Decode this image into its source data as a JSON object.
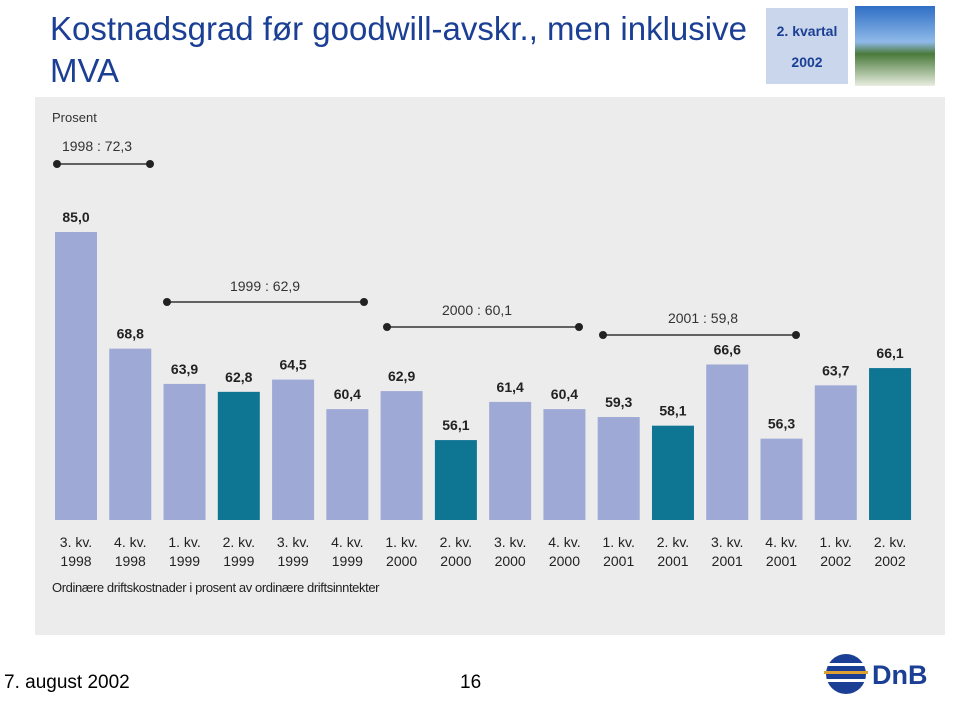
{
  "title": "Kostnadsgrad før goodwill-avskr., men inklusive MVA",
  "quarter_box": {
    "line1": "2. kvartal",
    "line2": "2002"
  },
  "footer": {
    "date": "7. august 2002",
    "page": "16",
    "logo": "DnB"
  },
  "chart_data": {
    "type": "bar",
    "y_label": "Prosent",
    "note": "Ordinære driftskostnader i prosent av ordinære driftsinntekter",
    "categories": [
      "3. kv. 1998",
      "4. kv. 1998",
      "1. kv. 1999",
      "2. kv. 1999",
      "3. kv. 1999",
      "4. kv. 1999",
      "1. kv. 2000",
      "2. kv. 2000",
      "3. kv. 2000",
      "4. kv. 2000",
      "1. kv. 2001",
      "2. kv. 2001",
      "3. kv. 2001",
      "4. kv. 2001",
      "1. kv. 2002",
      "2. kv. 2002"
    ],
    "values": [
      85.0,
      68.8,
      63.9,
      62.8,
      64.5,
      60.4,
      62.9,
      56.1,
      61.4,
      60.4,
      59.3,
      58.1,
      66.6,
      56.3,
      63.7,
      66.1
    ],
    "value_labels": [
      "85,0",
      "68,8",
      "63,9",
      "62,8",
      "64,5",
      "60,4",
      "62,9",
      "56,1",
      "61,4",
      "60,4",
      "59,3",
      "58,1",
      "66,6",
      "56,3",
      "63,7",
      "66,1"
    ],
    "colors": [
      "#9ea9d6",
      "#9ea9d6",
      "#9ea9d6",
      "#0e7592",
      "#9ea9d6",
      "#9ea9d6",
      "#9ea9d6",
      "#0e7592",
      "#9ea9d6",
      "#9ea9d6",
      "#9ea9d6",
      "#0e7592",
      "#9ea9d6",
      "#9ea9d6",
      "#9ea9d6",
      "#0e7592"
    ],
    "annotations": [
      "1998 : 72,3",
      "1999 : 62,9",
      "2000 : 60,1",
      "2001 : 59,8"
    ],
    "ylim": [
      45,
      85
    ]
  }
}
